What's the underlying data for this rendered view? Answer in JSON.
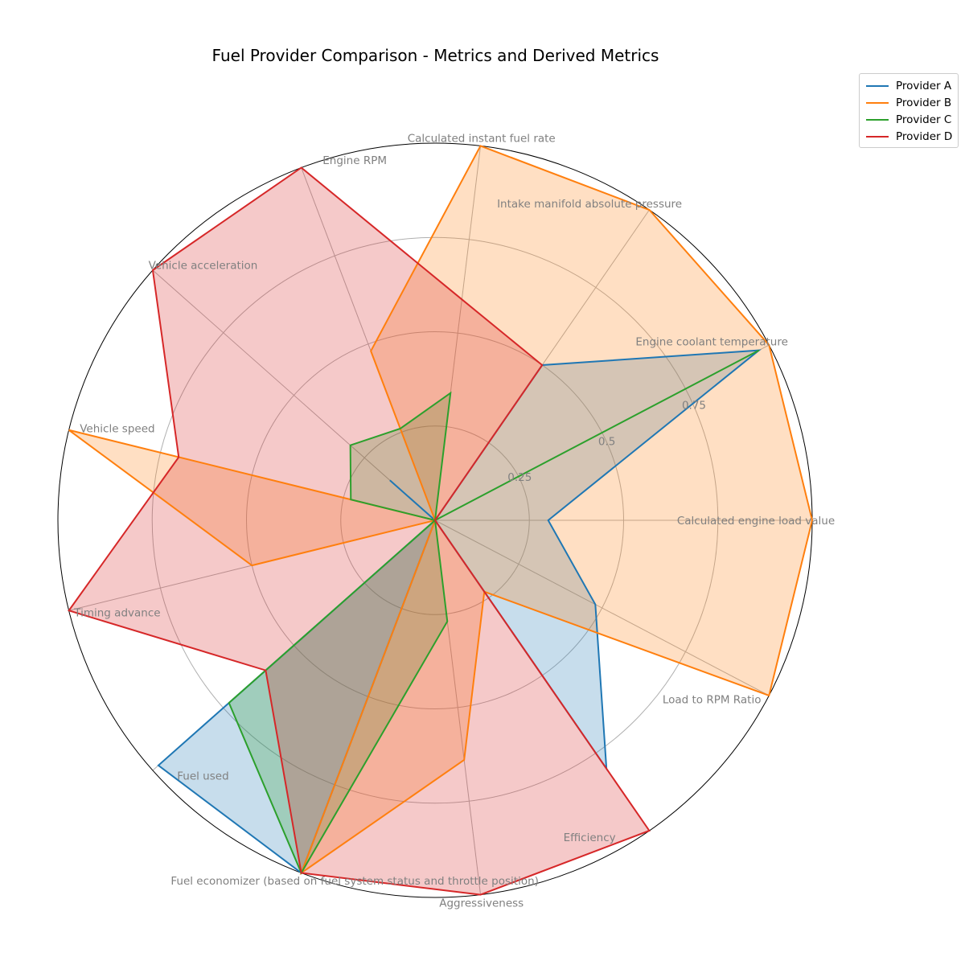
{
  "chart_data": {
    "type": "radar",
    "title": "Fuel Provider Comparison - Metrics and Derived Metrics",
    "categories": [
      "Calculated engine load value",
      "Engine coolant temperature",
      "Intake manifold absolute pressure",
      "Calculated instant fuel rate",
      "Engine RPM",
      "Vehicle acceleration",
      "Vehicle speed",
      "Timing advance",
      "Fuel used",
      "Fuel economizer (based on fuel system status and throttle position)",
      "Aggressiveness",
      "Efficiency",
      "Load to RPM Ratio"
    ],
    "radial_ticks": [
      "0.25",
      "0.5",
      "0.75"
    ],
    "rlim": [
      0,
      1
    ],
    "grid": true,
    "legend_position": "top-right",
    "series": [
      {
        "name": "Provider A",
        "color": "#1f77b4",
        "values": [
          0.3,
          0.97,
          0.5,
          0.0,
          0.0,
          0.16,
          0.0,
          0.0,
          0.98,
          1.0,
          0.0,
          0.8,
          0.48
        ]
      },
      {
        "name": "Provider B",
        "color": "#ff7f0e",
        "values": [
          1.0,
          1.0,
          1.0,
          1.0,
          0.48,
          0.0,
          1.0,
          0.5,
          0.0,
          1.0,
          0.64,
          0.23,
          1.0
        ]
      },
      {
        "name": "Provider C",
        "color": "#2ca02c",
        "values": [
          0.0,
          0.97,
          0.0,
          0.34,
          0.26,
          0.3,
          0.23,
          0.0,
          0.73,
          1.0,
          0.27,
          0.0,
          0.0
        ]
      },
      {
        "name": "Provider D",
        "color": "#d62728",
        "values": [
          0.0,
          0.0,
          0.5,
          0.59,
          1.0,
          1.0,
          0.7,
          1.0,
          0.6,
          1.0,
          1.0,
          1.0,
          0.0
        ]
      }
    ]
  }
}
